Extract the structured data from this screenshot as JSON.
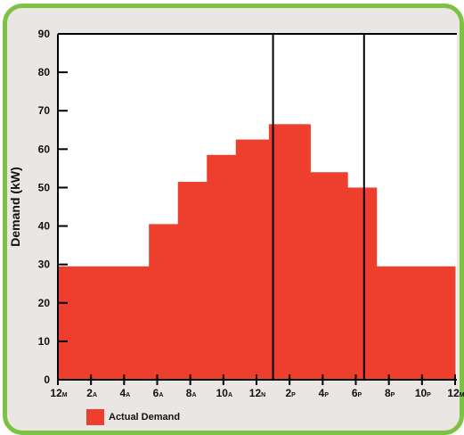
{
  "chart_data": {
    "type": "bar",
    "title": "",
    "xlabel": "",
    "ylabel": "Demand (kW)",
    "ylim": [
      0,
      90
    ],
    "yticks": [
      0,
      10,
      20,
      30,
      40,
      50,
      60,
      70,
      80,
      90
    ],
    "grid": false,
    "x_ticks": [
      {
        "main": "12",
        "sub": "M"
      },
      {
        "main": "2",
        "sub": "A"
      },
      {
        "main": "4",
        "sub": "A"
      },
      {
        "main": "6",
        "sub": "A"
      },
      {
        "main": "8",
        "sub": "A"
      },
      {
        "main": "10",
        "sub": "A"
      },
      {
        "main": "12",
        "sub": "N"
      },
      {
        "main": "2",
        "sub": "P"
      },
      {
        "main": "4",
        "sub": "P"
      },
      {
        "main": "6",
        "sub": "P"
      },
      {
        "main": "8",
        "sub": "P"
      },
      {
        "main": "10",
        "sub": "P"
      },
      {
        "main": "12",
        "sub": "M"
      }
    ],
    "x_range_hours": [
      0,
      24
    ],
    "series": [
      {
        "name": "Actual Demand",
        "color": "#ee3e2d",
        "steps": [
          {
            "start": 0,
            "end": 5.5,
            "value": 29.5
          },
          {
            "start": 5.5,
            "end": 7.25,
            "value": 40.5
          },
          {
            "start": 7.25,
            "end": 9.0,
            "value": 51.5
          },
          {
            "start": 9.0,
            "end": 10.75,
            "value": 58.5
          },
          {
            "start": 10.75,
            "end": 12.75,
            "value": 62.5
          },
          {
            "start": 12.75,
            "end": 15.25,
            "value": 66.5
          },
          {
            "start": 15.25,
            "end": 17.5,
            "value": 54.0
          },
          {
            "start": 17.5,
            "end": 19.25,
            "value": 50.0
          },
          {
            "start": 19.25,
            "end": 24.0,
            "value": 29.5
          }
        ]
      }
    ],
    "vertical_markers": [
      13,
      18.5
    ],
    "legend": {
      "label": "Actual Demand",
      "color": "#ee3e2d",
      "position": "bottom-left"
    }
  }
}
